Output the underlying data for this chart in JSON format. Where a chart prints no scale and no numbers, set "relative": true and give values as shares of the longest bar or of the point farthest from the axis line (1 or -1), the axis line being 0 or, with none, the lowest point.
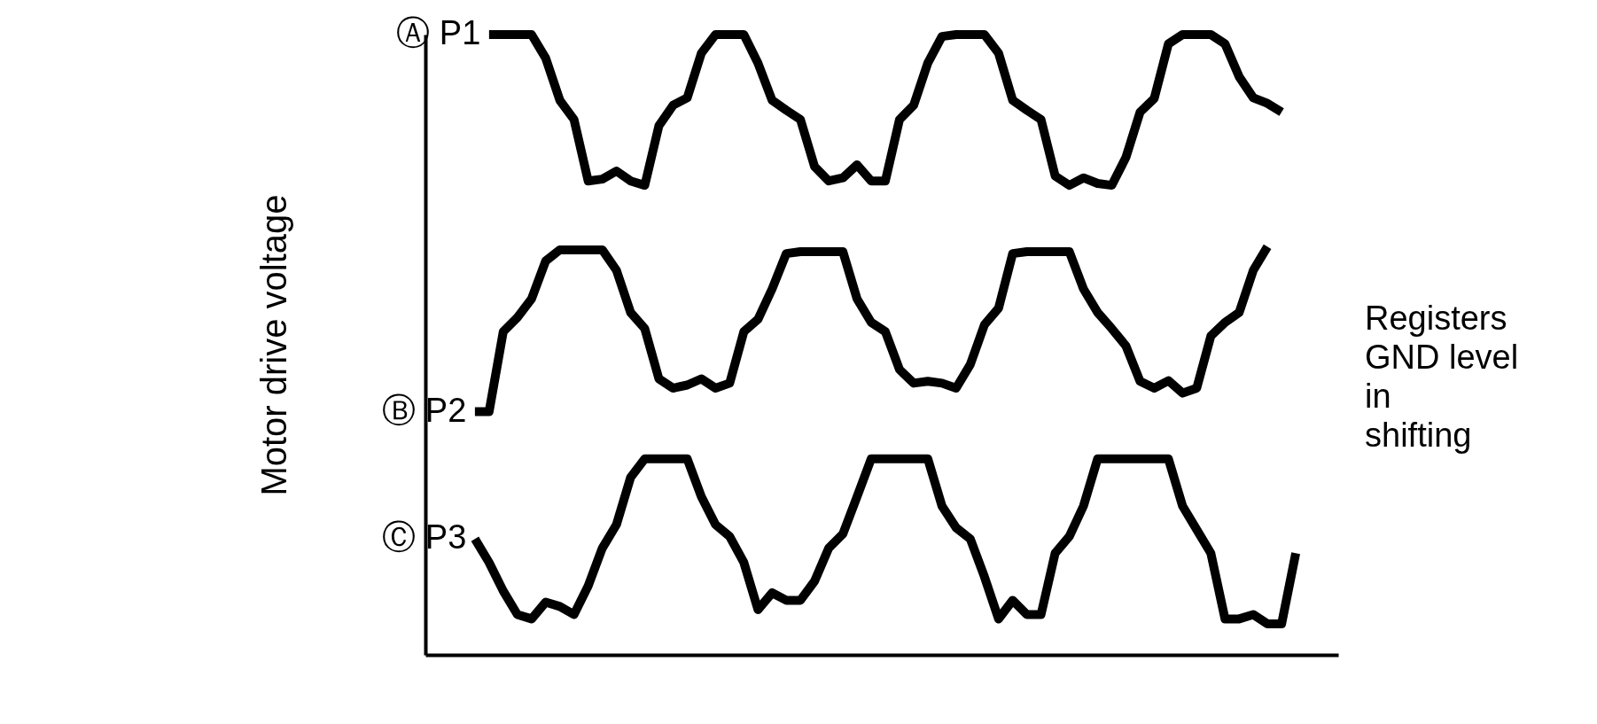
{
  "chart_data": {
    "type": "line",
    "relative": true,
    "ylabel": "Motor drive voltage",
    "legend": false,
    "grid": false,
    "tick_labels": false,
    "line_style": "solid",
    "annotations": [
      "Registers GND level in shifting"
    ],
    "categories": [
      null,
      null,
      null,
      null,
      null,
      null,
      null,
      null,
      null,
      null,
      null,
      null,
      null,
      null,
      null,
      null,
      null,
      null,
      null,
      null,
      null,
      null,
      null,
      null,
      null,
      null,
      null,
      null,
      null,
      null,
      null,
      null,
      null,
      null,
      null,
      null,
      null,
      null,
      null,
      null,
      null,
      null,
      null,
      null,
      null,
      null,
      null,
      null,
      null,
      null,
      null,
      null,
      null,
      null,
      null,
      null,
      null,
      null,
      null,
      null,
      null
    ],
    "series": [
      {
        "name": "Ⓐ P1",
        "color": "#000000",
        "values": [
          null,
          null,
          1.0,
          1.0,
          1.0,
          1.0,
          0.962,
          0.894,
          0.863,
          0.764,
          0.767,
          0.78,
          0.764,
          0.757,
          0.853,
          0.886,
          0.898,
          0.97,
          1.0,
          1.0,
          1.0,
          0.954,
          0.894,
          0.878,
          0.863,
          0.787,
          0.764,
          0.769,
          0.79,
          0.764,
          0.764,
          0.863,
          0.886,
          0.954,
          0.997,
          1.0,
          1.0,
          1.0,
          0.97,
          0.894,
          0.878,
          0.863,
          0.772,
          0.757,
          0.769,
          0.76,
          0.757,
          0.802,
          0.875,
          0.897,
          0.985,
          1.0,
          1.0,
          1.0,
          0.985,
          0.932,
          0.898,
          0.889,
          0.875,
          null,
          null
        ]
      },
      {
        "name": "Ⓑ P2",
        "color": "#000000",
        "values": [
          null,
          0.392,
          0.392,
          0.521,
          0.544,
          0.574,
          0.635,
          0.653,
          0.653,
          0.653,
          0.653,
          0.62,
          0.552,
          0.526,
          0.445,
          0.43,
          0.435,
          0.445,
          0.43,
          0.438,
          0.521,
          0.541,
          0.59,
          0.647,
          0.65,
          0.65,
          0.65,
          0.65,
          0.574,
          0.536,
          0.521,
          0.46,
          0.438,
          0.441,
          0.438,
          0.43,
          0.468,
          0.532,
          0.559,
          0.647,
          0.65,
          0.65,
          0.65,
          0.65,
          0.59,
          0.552,
          0.526,
          0.498,
          0.441,
          0.43,
          0.442,
          0.422,
          0.43,
          0.514,
          0.536,
          0.552,
          0.62,
          0.658,
          null,
          null,
          null
        ]
      },
      {
        "name": "Ⓒ P3",
        "color": "#000000",
        "values": [
          null,
          0.187,
          0.149,
          0.103,
          0.065,
          0.058,
          0.085,
          0.078,
          0.065,
          0.111,
          0.172,
          0.21,
          0.286,
          0.316,
          0.316,
          0.316,
          0.316,
          0.255,
          0.21,
          0.191,
          0.149,
          0.073,
          0.1,
          0.088,
          0.088,
          0.119,
          0.172,
          0.195,
          0.255,
          0.316,
          0.316,
          0.316,
          0.316,
          0.316,
          0.24,
          0.205,
          0.187,
          0.126,
          0.058,
          0.088,
          0.065,
          0.065,
          0.164,
          0.191,
          0.24,
          0.316,
          0.316,
          0.316,
          0.316,
          0.316,
          0.316,
          0.24,
          0.202,
          0.164,
          0.058,
          0.058,
          0.065,
          0.05,
          0.05,
          0.164,
          null
        ]
      }
    ]
  }
}
